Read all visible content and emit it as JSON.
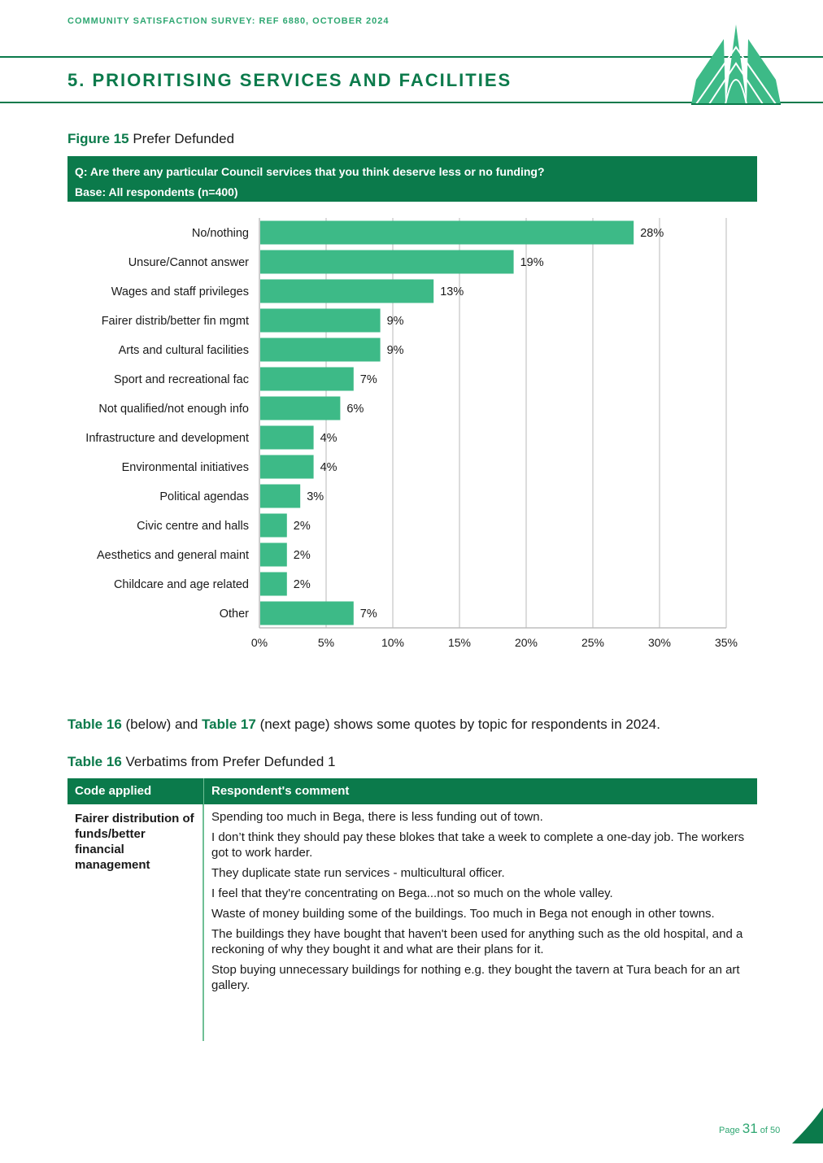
{
  "header": {
    "survey_ref": "COMMUNITY SATISFACTION SURVEY: REF 6880, OCTOBER 2024",
    "section_title": "5. PRIORITISING SERVICES AND FACILITIES"
  },
  "figure": {
    "label": "Figure 15",
    "title": "Prefer Defunded",
    "question": "Q: Are there any particular Council services that you think deserve less or no funding?",
    "base": "Base: All respondents (n=400)"
  },
  "chart_data": {
    "type": "bar",
    "orientation": "horizontal",
    "categories": [
      "No/nothing",
      "Unsure/Cannot answer",
      "Wages and staff privileges",
      "Fairer distrib/better fin mgmt",
      "Arts and cultural facilities",
      "Sport and recreational fac",
      "Not qualified/not enough info",
      "Infrastructure and development",
      "Environmental initiatives",
      "Political agendas",
      "Civic centre and halls",
      "Aesthetics and general maint",
      "Childcare and age related",
      "Other"
    ],
    "values": [
      28,
      19,
      13,
      9,
      9,
      7,
      6,
      4,
      4,
      3,
      2,
      2,
      2,
      7
    ],
    "value_labels": [
      "28%",
      "19%",
      "13%",
      "9%",
      "9%",
      "7%",
      "6%",
      "4%",
      "4%",
      "3%",
      "2%",
      "2%",
      "2%",
      "7%"
    ],
    "x_ticks": [
      "0%",
      "5%",
      "10%",
      "15%",
      "20%",
      "25%",
      "30%",
      "35%"
    ],
    "xlim": [
      0,
      35
    ],
    "grid": "vertical",
    "bar_color": "#3dba87"
  },
  "reference_paragraph": {
    "t16": "Table 16",
    "mid": " (below) and ",
    "t17": "Table 17",
    "rest": " (next page) shows some quotes by topic for respondents in 2024."
  },
  "table": {
    "label": "Table 16",
    "title": "Verbatims from Prefer Defunded 1",
    "col_code": "Code applied",
    "col_comment": "Respondent's comment",
    "code": "Fairer distribution of funds/better financial management",
    "comments": [
      "Spending too much in Bega, there is less funding out of town.",
      "I don’t think they should pay these blokes that take a week to complete a one-day job. The workers got to work harder.",
      "They duplicate state run services - multicultural officer.",
      "I feel that they're concentrating on Bega...not so much on the whole valley.",
      "Waste of money building some of the buildings. Too much in Bega not enough in other towns.",
      "The buildings they have bought that haven't been used for anything such as the old hospital, and a reckoning of why they bought it and what are their plans for it.",
      "Stop buying unnecessary buildings for nothing e.g. they bought the tavern at Tura beach for an art gallery."
    ]
  },
  "footer": {
    "page_word": "Page",
    "page_number": "31",
    "of_text": "of 50"
  },
  "colors": {
    "primary_green": "#0b7a4b",
    "accent_green": "#2fa772",
    "bar_green": "#3dba87"
  }
}
